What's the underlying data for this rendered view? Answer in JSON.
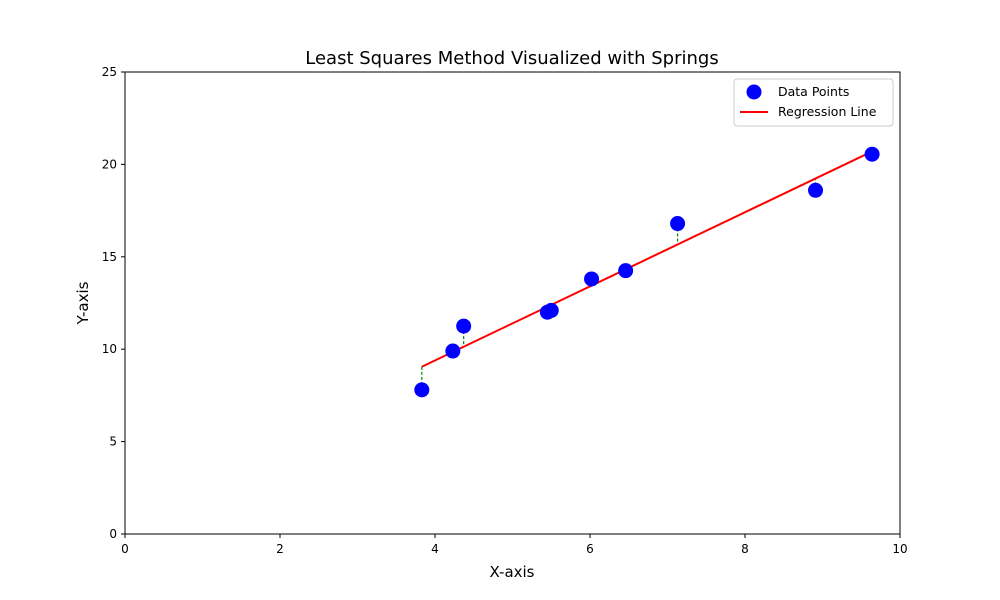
{
  "chart_data": {
    "type": "scatter",
    "title": "Least Squares Method Visualized with Springs",
    "xlabel": "X-axis",
    "ylabel": "Y-axis",
    "xlim": [
      0,
      10
    ],
    "ylim": [
      0,
      25
    ],
    "xticks": [
      0,
      2,
      4,
      6,
      8,
      10
    ],
    "yticks": [
      0,
      5,
      10,
      15,
      20,
      25
    ],
    "xtick_labels": [
      "0",
      "2",
      "4",
      "6",
      "8",
      "10"
    ],
    "ytick_labels": [
      "0",
      "5",
      "10",
      "15",
      "20",
      "25"
    ],
    "grid": false,
    "legend_position": "top-right",
    "series": [
      {
        "name": "Data Points",
        "kind": "scatter",
        "color": "#0000ff",
        "points": [
          {
            "x": 3.83,
            "y": 7.8
          },
          {
            "x": 4.23,
            "y": 9.9
          },
          {
            "x": 4.37,
            "y": 11.25
          },
          {
            "x": 5.45,
            "y": 12.0
          },
          {
            "x": 5.5,
            "y": 12.1
          },
          {
            "x": 6.02,
            "y": 13.8
          },
          {
            "x": 6.46,
            "y": 14.25
          },
          {
            "x": 7.13,
            "y": 16.8
          },
          {
            "x": 8.91,
            "y": 18.6
          },
          {
            "x": 9.64,
            "y": 20.55
          }
        ]
      },
      {
        "name": "Regression Line",
        "kind": "line",
        "color": "#ff0000",
        "x": [
          3.83,
          9.64
        ],
        "y": [
          9.05,
          20.7
        ]
      }
    ],
    "springs": {
      "style": "dashed",
      "color": "#008000"
    }
  }
}
